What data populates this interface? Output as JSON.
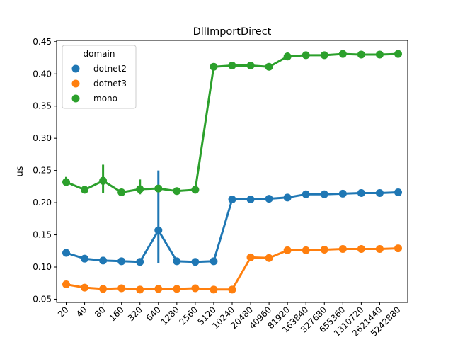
{
  "chart_data": {
    "type": "line",
    "title": "DllImportDirect",
    "xlabel": "",
    "ylabel": "us",
    "categories": [
      "20",
      "40",
      "80",
      "160",
      "320",
      "640",
      "1280",
      "2560",
      "5120",
      "10240",
      "20480",
      "40960",
      "81920",
      "163840",
      "327680",
      "655360",
      "1310720",
      "2621440",
      "5242880"
    ],
    "ylim": [
      0.045,
      0.452
    ],
    "yticks": [
      "0.05",
      "0.10",
      "0.15",
      "0.20",
      "0.25",
      "0.30",
      "0.35",
      "0.40",
      "0.45"
    ],
    "legend": {
      "title": "domain",
      "placement": "top-left"
    },
    "series": [
      {
        "name": "dotnet2",
        "color": "#1f77b4",
        "values": [
          0.122,
          0.113,
          0.11,
          0.109,
          0.108,
          0.157,
          0.109,
          0.108,
          0.109,
          0.205,
          0.205,
          0.206,
          0.208,
          0.213,
          0.213,
          0.214,
          0.215,
          0.215,
          0.216
        ],
        "error_low": [
          0.122,
          0.113,
          0.11,
          0.109,
          0.108,
          0.106,
          0.109,
          0.108,
          0.109,
          0.205,
          0.205,
          0.206,
          0.208,
          0.213,
          0.213,
          0.214,
          0.215,
          0.215,
          0.216
        ],
        "error_high": [
          0.122,
          0.113,
          0.11,
          0.109,
          0.108,
          0.25,
          0.109,
          0.108,
          0.109,
          0.205,
          0.205,
          0.206,
          0.208,
          0.213,
          0.213,
          0.214,
          0.215,
          0.215,
          0.216
        ]
      },
      {
        "name": "dotnet3",
        "color": "#ff7f0e",
        "values": [
          0.073,
          0.068,
          0.066,
          0.067,
          0.065,
          0.066,
          0.066,
          0.067,
          0.065,
          0.065,
          0.115,
          0.114,
          0.126,
          0.126,
          0.127,
          0.128,
          0.128,
          0.128,
          0.129
        ],
        "error_low": [
          0.073,
          0.068,
          0.066,
          0.067,
          0.065,
          0.066,
          0.066,
          0.067,
          0.065,
          0.065,
          0.115,
          0.114,
          0.126,
          0.126,
          0.127,
          0.128,
          0.128,
          0.128,
          0.129
        ],
        "error_high": [
          0.073,
          0.068,
          0.066,
          0.067,
          0.065,
          0.066,
          0.066,
          0.067,
          0.065,
          0.065,
          0.115,
          0.114,
          0.126,
          0.126,
          0.127,
          0.128,
          0.128,
          0.128,
          0.129
        ]
      },
      {
        "name": "mono",
        "color": "#2ca02c",
        "values": [
          0.232,
          0.22,
          0.234,
          0.216,
          0.221,
          0.222,
          0.218,
          0.22,
          0.411,
          0.413,
          0.413,
          0.411,
          0.427,
          0.429,
          0.429,
          0.431,
          0.43,
          0.43,
          0.431
        ],
        "error_low": [
          0.226,
          0.22,
          0.215,
          0.216,
          0.213,
          0.222,
          0.218,
          0.22,
          0.411,
          0.413,
          0.413,
          0.411,
          0.422,
          0.429,
          0.429,
          0.431,
          0.43,
          0.43,
          0.431
        ],
        "error_high": [
          0.24,
          0.22,
          0.259,
          0.216,
          0.236,
          0.222,
          0.218,
          0.22,
          0.411,
          0.413,
          0.413,
          0.411,
          0.434,
          0.429,
          0.429,
          0.431,
          0.43,
          0.43,
          0.431
        ]
      }
    ]
  }
}
